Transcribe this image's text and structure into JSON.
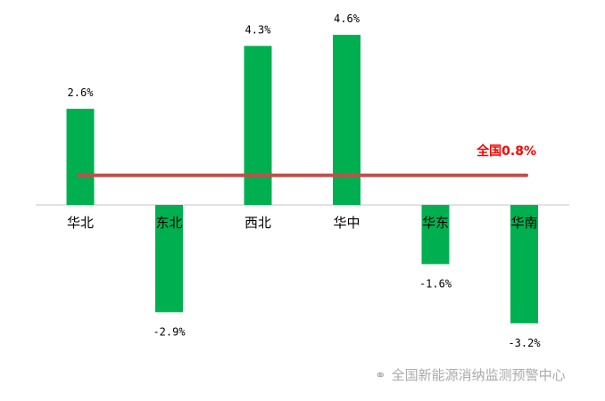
{
  "chart_data": {
    "type": "bar",
    "categories": [
      "华北",
      "东北",
      "西北",
      "华中",
      "华东",
      "华南"
    ],
    "values": [
      2.6,
      -2.9,
      4.3,
      4.6,
      -1.6,
      -3.2
    ],
    "data_labels": [
      "2.6%",
      "-2.9%",
      "4.3%",
      "4.6%",
      "-1.6%",
      "-3.2%"
    ],
    "reference_line": {
      "label": "全国0.8%",
      "value": 0.8,
      "color": "#c0504d",
      "label_color": "#ff0000"
    },
    "bar_color": "#00b050",
    "title": "",
    "xlabel": "",
    "ylabel": "",
    "ylim": [
      -3.5,
      4.8
    ],
    "grid": false
  },
  "watermark": {
    "text": "全国新能源消纳监测预警中心",
    "icon": "wechat-icon"
  }
}
